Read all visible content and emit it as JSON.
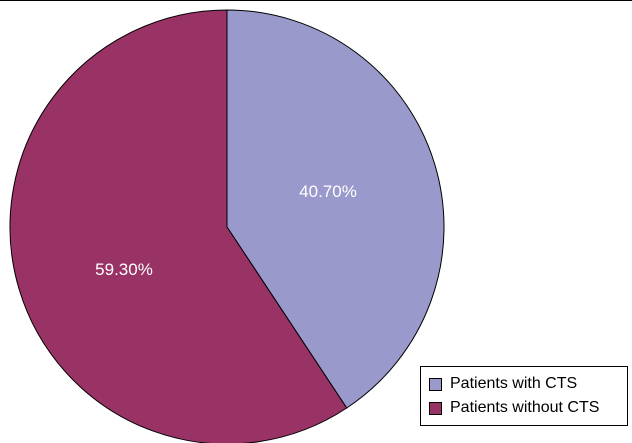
{
  "chart_data": {
    "type": "pie",
    "slices": [
      {
        "label": "Patients with CTS",
        "value": 40.7,
        "display": "40.70%",
        "color": "#9999cc"
      },
      {
        "label": "Patients without CTS",
        "value": 59.3,
        "display": "59.30%",
        "color": "#993366"
      }
    ],
    "start_direction": "top",
    "direction": "clockwise",
    "legend_position": "bottom-right"
  }
}
